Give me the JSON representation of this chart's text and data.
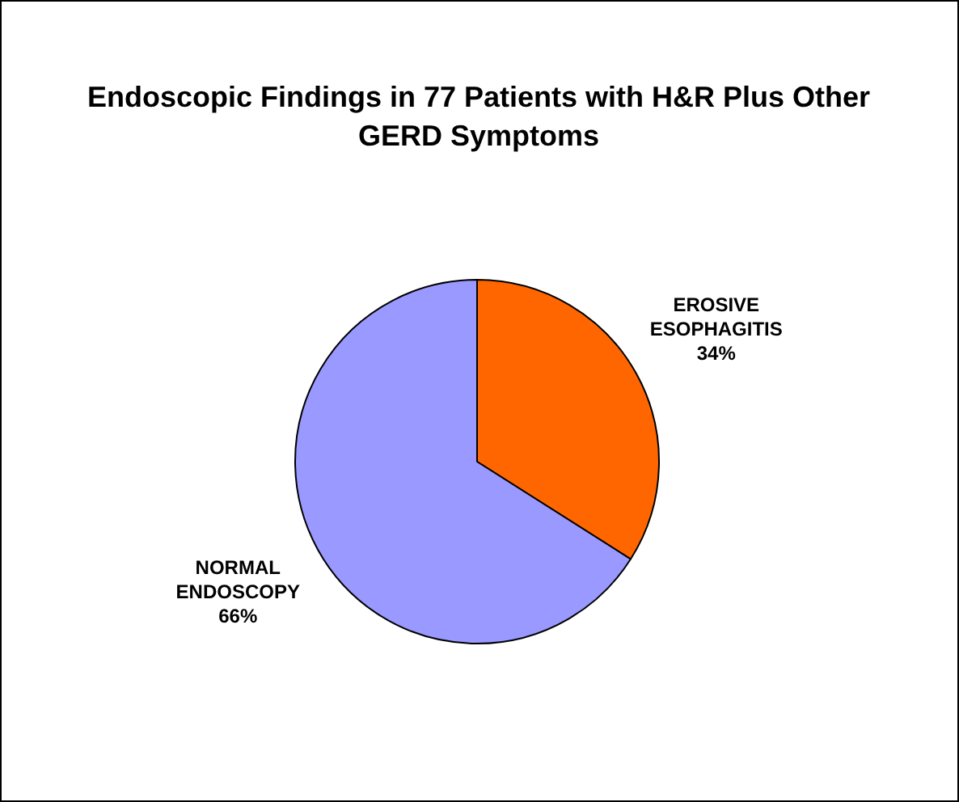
{
  "chart_data": {
    "type": "pie",
    "title": "Endoscopic Findings in 77 Patients with H&R Plus Other GERD Symptoms",
    "categories": [
      "EROSIVE ESOPHAGITIS",
      "NORMAL ENDOSCOPY"
    ],
    "values": [
      34,
      66
    ],
    "colors": [
      "#ff6600",
      "#9999ff"
    ],
    "value_labels": [
      "34%",
      "66%"
    ],
    "legend": false
  }
}
